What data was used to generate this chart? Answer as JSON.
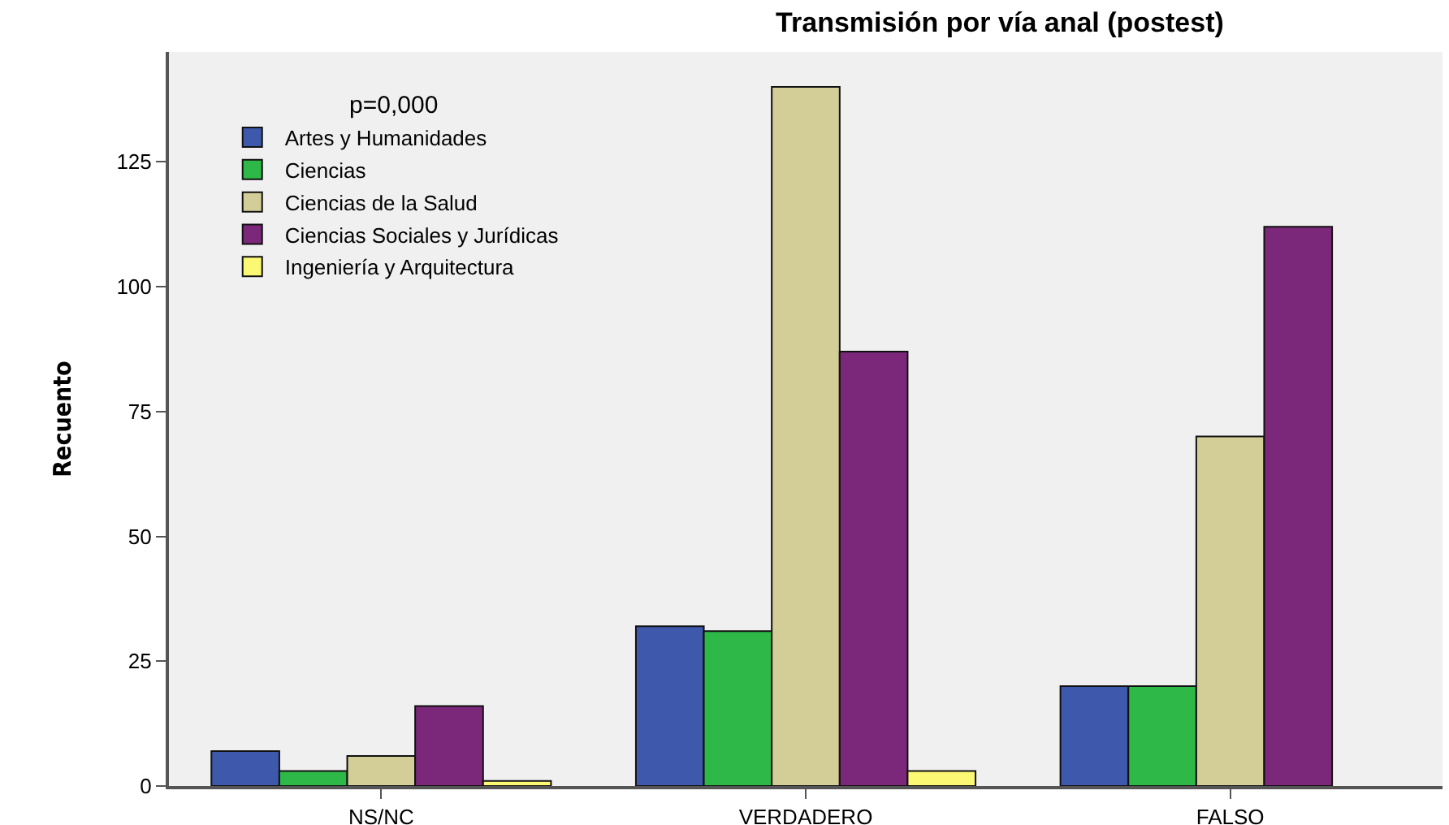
{
  "chart_data": {
    "type": "bar",
    "title": "Transmisión por vía anal (postest)",
    "ylabel": "Recuento",
    "legend_title": "p=0,000",
    "categories": [
      "NS/NC",
      "VERDADERO",
      "FALSO"
    ],
    "series": [
      {
        "name": "Artes y Humanidades",
        "color": "#3e58ac",
        "values": [
          7,
          32,
          20
        ]
      },
      {
        "name": "Ciencias",
        "color": "#2eb848",
        "values": [
          3,
          31,
          20
        ]
      },
      {
        "name": "Ciencias de la Salud",
        "color": "#d3ce97",
        "values": [
          6,
          140,
          70
        ]
      },
      {
        "name": "Ciencias Sociales y Jurídicas",
        "color": "#7b287a",
        "values": [
          16,
          87,
          112
        ]
      },
      {
        "name": "Ingeniería y Arquitectura",
        "color": "#fbf873",
        "values": [
          1,
          3,
          null
        ]
      }
    ],
    "ylim": [
      0,
      147
    ],
    "yticks": [
      0,
      25,
      50,
      75,
      100,
      125
    ],
    "grid": false,
    "legend": "top left"
  }
}
